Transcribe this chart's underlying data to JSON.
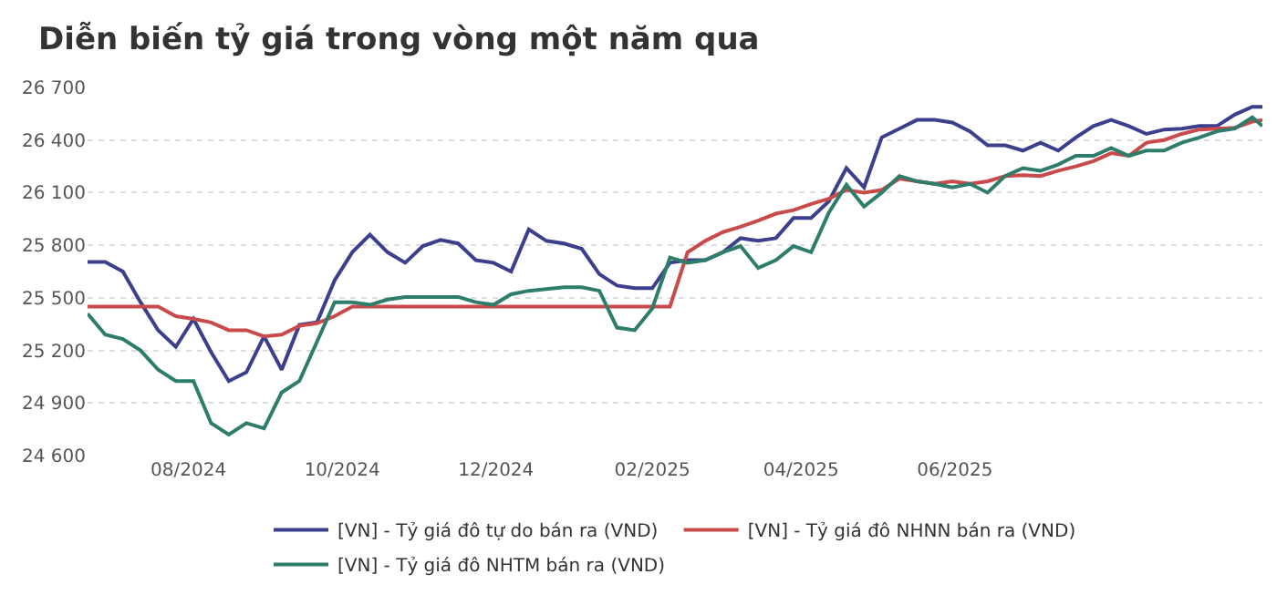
{
  "chart_data": {
    "type": "line",
    "title": "Diễn biến tỷ giá trong vòng một năm qua",
    "x": [
      "2024-06-22",
      "2024-06-29",
      "2024-07-06",
      "2024-07-13",
      "2024-07-20",
      "2024-07-27",
      "2024-08-03",
      "2024-08-10",
      "2024-08-17",
      "2024-08-24",
      "2024-08-31",
      "2024-09-07",
      "2024-09-14",
      "2024-09-21",
      "2024-09-28",
      "2024-10-05",
      "2024-10-12",
      "2024-10-19",
      "2024-10-26",
      "2024-11-02",
      "2024-11-09",
      "2024-11-16",
      "2024-11-23",
      "2024-11-30",
      "2024-12-07",
      "2024-12-14",
      "2024-12-21",
      "2024-12-28",
      "2025-01-04",
      "2025-01-11",
      "2025-01-18",
      "2025-01-25",
      "2025-02-01",
      "2025-02-08",
      "2025-02-15",
      "2025-02-22",
      "2025-03-01",
      "2025-03-08",
      "2025-03-15",
      "2025-03-22",
      "2025-03-29",
      "2025-04-05",
      "2025-04-12",
      "2025-04-19",
      "2025-04-26",
      "2025-05-03",
      "2025-05-10",
      "2025-05-17",
      "2025-05-24",
      "2025-05-31",
      "2025-06-07",
      "2025-06-14",
      "2025-06-21",
      "2025-06-28",
      "2025-07-05",
      "2025-07-12",
      "2025-07-19",
      "2025-07-26",
      "2025-08-02",
      "2025-08-09",
      "2025-08-16",
      "2025-08-23",
      "2025-08-30",
      "2025-09-06",
      "2025-09-13",
      "2025-09-20",
      "2025-09-27",
      "2025-10-01"
    ],
    "series": [
      {
        "name": "[VN] - Tỷ giá đô tự do bán ra (VND)",
        "color": "#3b3f8c",
        "values": [
          25705,
          25705,
          25650,
          25475,
          25315,
          25220,
          25380,
          25190,
          25025,
          25075,
          25280,
          25090,
          25345,
          25360,
          25600,
          25760,
          25860,
          25760,
          25700,
          25795,
          25830,
          25810,
          25715,
          25700,
          25650,
          25890,
          25825,
          25810,
          25780,
          25635,
          25570,
          25555,
          25555,
          25700,
          25715,
          25715,
          25760,
          25840,
          25825,
          25840,
          25955,
          25955,
          26050,
          26240,
          26130,
          26415,
          26465,
          26515,
          26515,
          26500,
          26450,
          26370,
          26370,
          26340,
          26385,
          26340,
          26415,
          26480,
          26515,
          26480,
          26435,
          26460,
          26465,
          26480,
          26480,
          26545,
          26590,
          26590
        ]
      },
      {
        "name": "[VN] - Tỷ giá đô NHNN bán ra (VND)",
        "color": "#c94a4a",
        "values": [
          25450,
          25450,
          25450,
          25450,
          25450,
          25395,
          25380,
          25360,
          25315,
          25315,
          25280,
          25290,
          25340,
          25355,
          25395,
          25450,
          25450,
          25450,
          25450,
          25450,
          25450,
          25450,
          25450,
          25450,
          25450,
          25450,
          25450,
          25450,
          25450,
          25450,
          25450,
          25450,
          25450,
          25450,
          25760,
          25825,
          25875,
          25905,
          25940,
          25980,
          26000,
          26035,
          26065,
          26115,
          26100,
          26115,
          26180,
          26165,
          26150,
          26165,
          26150,
          26165,
          26195,
          26200,
          26195,
          26225,
          26250,
          26280,
          26325,
          26310,
          26385,
          26400,
          26435,
          26460,
          26465,
          26470,
          26505,
          26515
        ]
      },
      {
        "name": "[VN] - Tỷ giá đô NHTM bán ra (VND)",
        "color": "#2e7d6b",
        "values": [
          25410,
          25290,
          25265,
          25200,
          25090,
          25025,
          25025,
          24785,
          24720,
          24785,
          24755,
          24960,
          25025,
          25250,
          25475,
          25475,
          25460,
          25490,
          25505,
          25505,
          25505,
          25505,
          25475,
          25460,
          25520,
          25540,
          25550,
          25560,
          25560,
          25540,
          25330,
          25315,
          25440,
          25730,
          25700,
          25715,
          25760,
          25795,
          25670,
          25715,
          25795,
          25760,
          25985,
          26145,
          26020,
          26100,
          26195,
          26165,
          26150,
          26130,
          26150,
          26100,
          26195,
          26240,
          26225,
          26260,
          26310,
          26310,
          26355,
          26310,
          26340,
          26340,
          26385,
          26415,
          26450,
          26465,
          26530,
          26480
        ]
      }
    ],
    "xlim": [
      "2024-06-22",
      "2025-10-01"
    ],
    "xticks": [
      {
        "value": "2024-08-01",
        "label": "08/2024"
      },
      {
        "value": "2024-10-01",
        "label": "10/2024"
      },
      {
        "value": "2024-12-01",
        "label": "12/2024"
      },
      {
        "value": "2025-02-01",
        "label": "02/2025"
      },
      {
        "value": "2025-04-01",
        "label": "04/2025"
      },
      {
        "value": "2025-06-01",
        "label": "06/2025"
      }
    ],
    "ylim": [
      24600,
      26700
    ],
    "yticks": [
      {
        "value": 24600,
        "label": "24 600"
      },
      {
        "value": 24900,
        "label": "24 900"
      },
      {
        "value": 25200,
        "label": "25 200"
      },
      {
        "value": 25500,
        "label": "25 500"
      },
      {
        "value": 25800,
        "label": "25 800"
      },
      {
        "value": 26100,
        "label": "26 100"
      },
      {
        "value": 26400,
        "label": "26 400"
      },
      {
        "value": 26700,
        "label": "26 700"
      }
    ],
    "grid": "y",
    "legend": "bottom",
    "marker": "none",
    "line_style": "solid"
  }
}
